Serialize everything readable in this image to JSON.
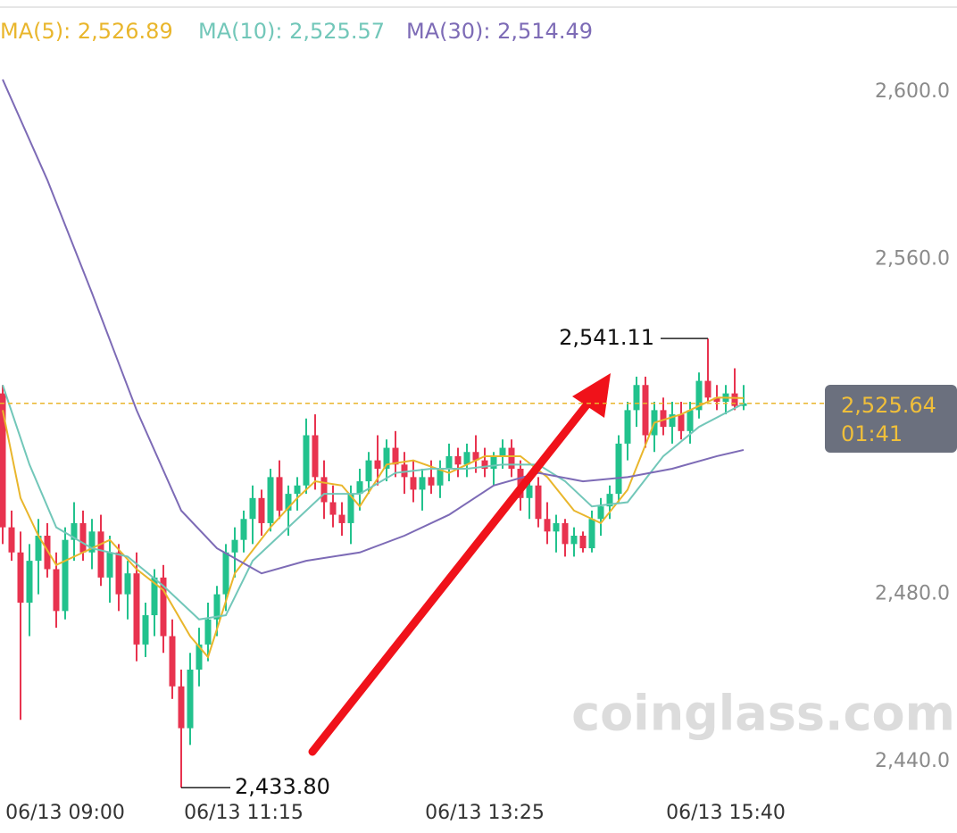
{
  "chart_data": {
    "type": "candlestick",
    "categories": [
      null,
      null,
      null,
      null,
      null,
      null,
      null,
      "06/13 09:00",
      null,
      null,
      null,
      null,
      null,
      null,
      null,
      null,
      null,
      null,
      null,
      null,
      null,
      null,
      null,
      null,
      null,
      null,
      null,
      "06/13 11:15",
      null,
      null,
      null,
      null,
      null,
      null,
      null,
      null,
      null,
      null,
      null,
      null,
      null,
      null,
      null,
      null,
      null,
      null,
      null,
      null,
      null,
      null,
      null,
      null,
      null,
      null,
      "06/13 13:25",
      null,
      null,
      null,
      null,
      null,
      null,
      null,
      null,
      null,
      null,
      null,
      null,
      null,
      null,
      null,
      null,
      null,
      null,
      null,
      null,
      null,
      null,
      null,
      null,
      null,
      null,
      "06/13 15:40",
      null,
      null
    ],
    "open": [
      2528,
      2496,
      2490,
      2478,
      2488,
      2494,
      2486,
      2476,
      2493,
      2497,
      2490,
      2495,
      2484,
      2490,
      2480,
      2485,
      2468,
      2475,
      2484,
      2470,
      2458,
      2448,
      2462,
      2468,
      2474,
      2480,
      2490,
      2493,
      2498,
      2503,
      2497,
      2508,
      2500,
      2504,
      2506,
      2518,
      2508,
      2502,
      2499,
      2497,
      2504,
      2507,
      2512,
      2510,
      2515,
      2511,
      2508,
      2505,
      2508,
      2506,
      2510,
      2513,
      2511,
      2514,
      2512,
      2510,
      2513,
      2515,
      2510,
      2503,
      2506,
      2498,
      2495,
      2497,
      2492,
      2494,
      2491,
      2498,
      2501,
      2504,
      2516,
      2524,
      2530,
      2518,
      2524,
      2520,
      2523,
      2519,
      2524,
      2531,
      2527,
      2526,
      2528,
      2525
    ],
    "high": [
      2530,
      2500,
      2495,
      2492,
      2498,
      2497,
      2490,
      2496,
      2502,
      2500,
      2498,
      2499,
      2494,
      2492,
      2488,
      2490,
      2478,
      2486,
      2487,
      2474,
      2462,
      2466,
      2472,
      2478,
      2482,
      2492,
      2496,
      2500,
      2506,
      2505,
      2510,
      2512,
      2506,
      2508,
      2522,
      2523,
      2512,
      2506,
      2502,
      2506,
      2510,
      2514,
      2518,
      2517,
      2519,
      2514,
      2512,
      2510,
      2512,
      2512,
      2516,
      2515,
      2516,
      2518,
      2515,
      2514,
      2517,
      2517,
      2512,
      2508,
      2508,
      2502,
      2499,
      2498,
      2496,
      2495,
      2500,
      2503,
      2506,
      2518,
      2526,
      2532,
      2532,
      2526,
      2527,
      2526,
      2526,
      2526,
      2533,
      2541.11,
      2530,
      2530,
      2534,
      2530
    ],
    "low": [
      2492,
      2488,
      2450,
      2470,
      2480,
      2484,
      2472,
      2474,
      2488,
      2488,
      2486,
      2482,
      2478,
      2476,
      2474,
      2464,
      2465,
      2470,
      2466,
      2455,
      2433.8,
      2444,
      2458,
      2464,
      2470,
      2476,
      2484,
      2490,
      2492,
      2494,
      2495,
      2498,
      2494,
      2500,
      2504,
      2505,
      2498,
      2496,
      2494,
      2492,
      2500,
      2504,
      2506,
      2507,
      2508,
      2504,
      2502,
      2500,
      2504,
      2503,
      2507,
      2508,
      2508,
      2509,
      2508,
      2506,
      2510,
      2508,
      2500,
      2498,
      2496,
      2492,
      2490,
      2489,
      2489,
      2490,
      2490,
      2494,
      2498,
      2502,
      2512,
      2520,
      2515,
      2514,
      2518,
      2516,
      2517,
      2516,
      2522,
      2526,
      2524,
      2523,
      2524,
      2524
    ],
    "close": [
      2496,
      2490,
      2478,
      2488,
      2494,
      2486,
      2476,
      2493,
      2497,
      2490,
      2495,
      2484,
      2490,
      2480,
      2485,
      2468,
      2475,
      2484,
      2470,
      2458,
      2448,
      2462,
      2468,
      2474,
      2480,
      2490,
      2493,
      2498,
      2503,
      2497,
      2508,
      2500,
      2504,
      2506,
      2518,
      2508,
      2502,
      2499,
      2497,
      2504,
      2507,
      2512,
      2510,
      2515,
      2511,
      2508,
      2505,
      2508,
      2506,
      2510,
      2513,
      2511,
      2514,
      2512,
      2510,
      2513,
      2515,
      2510,
      2503,
      2506,
      2498,
      2495,
      2497,
      2492,
      2494,
      2491,
      2498,
      2501,
      2504,
      2516,
      2524,
      2530,
      2518,
      2524,
      2520,
      2523,
      2519,
      2524,
      2531,
      2527,
      2526,
      2528,
      2525,
      2525.64
    ],
    "up_color": "#22c28d",
    "down_color": "#e8334f",
    "ylim": [
      2430,
      2622
    ],
    "yticks": [
      {
        "value": 2440,
        "label": "2,440.0"
      },
      {
        "value": 2480,
        "label": "2,480.0"
      },
      {
        "value": 2560,
        "label": "2,560.0"
      },
      {
        "value": 2600,
        "label": "2,600.0"
      }
    ],
    "series": [
      {
        "name": "MA(5): 2,526.89",
        "color": "#e9b62c",
        "x": [
          0,
          2,
          4,
          6,
          9,
          12,
          15,
          18,
          21,
          23,
          26,
          30,
          33,
          35,
          38,
          40,
          43,
          46,
          50,
          54,
          58,
          61,
          64,
          67,
          70,
          73,
          76,
          80,
          83
        ],
        "values": [
          2524,
          2503,
          2494,
          2487,
          2490,
          2493,
          2486,
          2481,
          2470,
          2465,
          2485,
          2496,
          2503,
          2507,
          2506,
          2501,
          2511,
          2512,
          2509,
          2513,
          2513,
          2508,
          2500,
          2497,
          2505,
          2521,
          2523,
          2527,
          2526.89
        ]
      },
      {
        "name": "MA(10): 2,525.57",
        "color": "#72c7b9",
        "x": [
          0,
          3,
          6,
          10,
          14,
          18,
          22,
          25,
          28,
          32,
          36,
          40,
          44,
          48,
          52,
          56,
          60,
          63,
          66,
          70,
          74,
          78,
          83
        ],
        "values": [
          2530,
          2511,
          2496,
          2491,
          2489,
          2482,
          2474,
          2475,
          2488,
          2496,
          2504,
          2504,
          2509,
          2510,
          2510,
          2511,
          2511,
          2507,
          2501,
          2502,
          2513,
          2520,
          2525.57
        ]
      },
      {
        "name": "MA(30): 2,514.49",
        "color": "#7d6bb6",
        "x": [
          0,
          5,
          10,
          15,
          20,
          24,
          29,
          34,
          40,
          45,
          50,
          55,
          60,
          65,
          70,
          75,
          80,
          83
        ],
        "values": [
          2603,
          2579,
          2552,
          2524,
          2500,
          2491,
          2485,
          2488,
          2490,
          2494,
          2499,
          2506,
          2509,
          2507,
          2508,
          2510,
          2513,
          2514.49
        ]
      }
    ],
    "last_price": {
      "value": 2525.64,
      "label": "2,525.64"
    },
    "countdown": "01:41",
    "annotations": [
      {
        "x": 79,
        "value": 2541.11,
        "label": "2,541.11"
      },
      {
        "x": 20,
        "value": 2433.8,
        "label": "2,433.80"
      }
    ],
    "watermark": "coinglass.com"
  }
}
